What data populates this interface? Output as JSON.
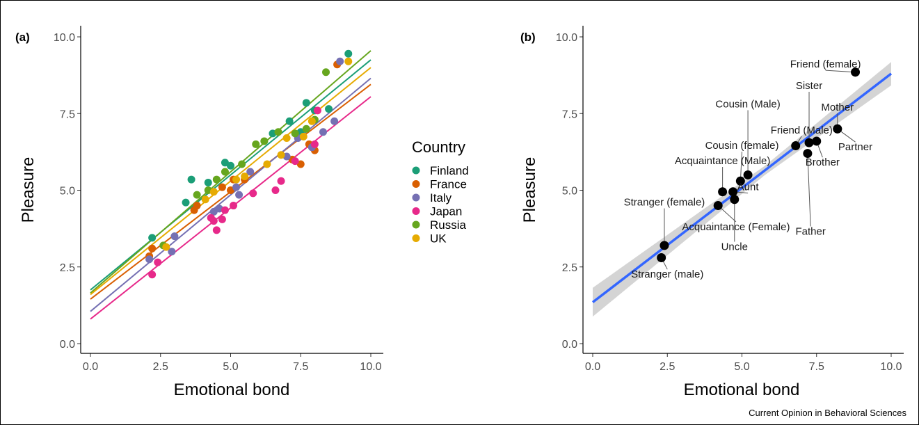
{
  "credit": "Current Opinion in Behavioral Sciences",
  "chart_data": [
    {
      "type": "scatter",
      "panel_tag": "(a)",
      "xlabel": "Emotional bond",
      "ylabel": "Pleasure",
      "xlim": [
        0,
        10
      ],
      "ylim": [
        0,
        10
      ],
      "x_ticks": [
        "0.0",
        "2.5",
        "5.0",
        "7.5",
        "10.0"
      ],
      "y_ticks": [
        "0.0",
        "2.5",
        "5.0",
        "7.5",
        "10.0"
      ],
      "grid": false,
      "legend": {
        "title": "Country",
        "position": "right"
      },
      "series": [
        {
          "name": "Finland",
          "color": "#1b9e77",
          "fit": {
            "intercept": 1.75,
            "slope": 0.75
          },
          "points": [
            [
              2.2,
              3.45
            ],
            [
              3.4,
              4.6
            ],
            [
              3.6,
              5.35
            ],
            [
              4.2,
              5.25
            ],
            [
              4.8,
              5.9
            ],
            [
              5.0,
              5.8
            ],
            [
              6.5,
              6.85
            ],
            [
              7.1,
              7.25
            ],
            [
              7.5,
              6.9
            ],
            [
              7.7,
              7.85
            ],
            [
              8.0,
              7.6
            ],
            [
              8.5,
              7.65
            ],
            [
              9.2,
              9.45
            ]
          ]
        },
        {
          "name": "France",
          "color": "#d95f02",
          "fit": {
            "intercept": 1.45,
            "slope": 0.7
          },
          "points": [
            [
              2.1,
              2.85
            ],
            [
              2.2,
              3.1
            ],
            [
              3.7,
              4.35
            ],
            [
              3.8,
              4.5
            ],
            [
              4.7,
              5.1
            ],
            [
              5.0,
              5.0
            ],
            [
              5.1,
              5.35
            ],
            [
              5.5,
              5.35
            ],
            [
              7.2,
              6.0
            ],
            [
              7.5,
              5.85
            ],
            [
              7.8,
              6.5
            ],
            [
              8.0,
              6.3
            ],
            [
              8.8,
              9.1
            ]
          ]
        },
        {
          "name": "Italy",
          "color": "#7570b3",
          "fit": {
            "intercept": 1.05,
            "slope": 0.76
          },
          "points": [
            [
              2.1,
              2.75
            ],
            [
              2.9,
              3.0
            ],
            [
              3.0,
              3.5
            ],
            [
              4.4,
              4.3
            ],
            [
              4.6,
              4.4
            ],
            [
              5.2,
              5.1
            ],
            [
              5.3,
              4.85
            ],
            [
              5.7,
              5.6
            ],
            [
              7.0,
              6.1
            ],
            [
              7.4,
              6.7
            ],
            [
              7.9,
              6.4
            ],
            [
              8.3,
              6.9
            ],
            [
              8.7,
              7.25
            ],
            [
              8.9,
              9.2
            ]
          ]
        },
        {
          "name": "Japan",
          "color": "#e7298a",
          "fit": {
            "intercept": 0.8,
            "slope": 0.725
          },
          "points": [
            [
              2.2,
              2.25
            ],
            [
              2.4,
              2.65
            ],
            [
              4.3,
              4.1
            ],
            [
              4.4,
              4.0
            ],
            [
              4.5,
              3.7
            ],
            [
              4.7,
              4.05
            ],
            [
              4.8,
              4.35
            ],
            [
              5.1,
              4.5
            ],
            [
              5.8,
              4.9
            ],
            [
              6.6,
              5.0
            ],
            [
              6.8,
              5.3
            ],
            [
              7.3,
              5.95
            ],
            [
              8.0,
              6.5
            ],
            [
              8.1,
              7.6
            ]
          ]
        },
        {
          "name": "Russia",
          "color": "#66a61e",
          "fit": {
            "intercept": 1.65,
            "slope": 0.79
          },
          "points": [
            [
              2.6,
              3.2
            ],
            [
              3.8,
              4.85
            ],
            [
              4.2,
              5.0
            ],
            [
              4.5,
              5.35
            ],
            [
              4.8,
              5.6
            ],
            [
              5.4,
              5.85
            ],
            [
              5.9,
              6.5
            ],
            [
              6.2,
              6.6
            ],
            [
              6.7,
              6.9
            ],
            [
              7.3,
              6.85
            ],
            [
              7.7,
              7.0
            ],
            [
              8.0,
              7.3
            ],
            [
              8.4,
              8.85
            ]
          ]
        },
        {
          "name": "UK",
          "color": "#e6ab02",
          "fit": {
            "intercept": 1.6,
            "slope": 0.74
          },
          "points": [
            [
              2.7,
              3.15
            ],
            [
              4.1,
              4.7
            ],
            [
              4.4,
              4.95
            ],
            [
              5.2,
              5.35
            ],
            [
              5.5,
              5.45
            ],
            [
              6.3,
              5.85
            ],
            [
              6.8,
              6.15
            ],
            [
              7.0,
              6.7
            ],
            [
              7.6,
              6.75
            ],
            [
              7.9,
              7.25
            ],
            [
              9.2,
              9.2
            ]
          ]
        }
      ]
    },
    {
      "type": "scatter",
      "panel_tag": "(b)",
      "xlabel": "Emotional bond",
      "ylabel": "Pleasure",
      "xlim": [
        0,
        10
      ],
      "ylim": [
        0,
        10
      ],
      "x_ticks": [
        "0.0",
        "2.5",
        "5.0",
        "7.5",
        "10.0"
      ],
      "y_ticks": [
        "0.0",
        "2.5",
        "5.0",
        "7.5",
        "10.0"
      ],
      "grid": false,
      "fit": {
        "intercept": 1.35,
        "slope": 0.745,
        "color": "#3366ff",
        "band_color": "#cccccc"
      },
      "points": [
        {
          "label": "Stranger (male)",
          "x": 2.3,
          "y": 2.8,
          "lx": 2.5,
          "ly": 2.15
        },
        {
          "label": "Stranger (female)",
          "x": 2.4,
          "y": 3.2,
          "lx": 2.4,
          "ly": 4.5
        },
        {
          "label": "Acquaintance (Female)",
          "x": 4.2,
          "y": 4.5,
          "lx": 4.8,
          "ly": 3.7
        },
        {
          "label": "Acquaintance (Male)",
          "x": 4.35,
          "y": 4.95,
          "lx": 4.35,
          "ly": 5.85
        },
        {
          "label": "Aunt",
          "x": 4.7,
          "y": 4.95,
          "lx": 5.2,
          "ly": 5.0
        },
        {
          "label": "Uncle",
          "x": 4.75,
          "y": 4.7,
          "lx": 4.75,
          "ly": 3.05
        },
        {
          "label": "Cousin (female)",
          "x": 4.95,
          "y": 5.3,
          "lx": 5.0,
          "ly": 6.35
        },
        {
          "label": "Cousin (Male)",
          "x": 5.2,
          "y": 5.5,
          "lx": 5.2,
          "ly": 7.7
        },
        {
          "label": "Friend (Male)",
          "x": 6.8,
          "y": 6.45,
          "lx": 7.0,
          "ly": 6.85
        },
        {
          "label": "Father",
          "x": 7.2,
          "y": 6.2,
          "lx": 7.3,
          "ly": 3.55
        },
        {
          "label": "Brother",
          "x": 7.5,
          "y": 6.6,
          "lx": 7.7,
          "ly": 5.8
        },
        {
          "label": "Sister",
          "x": 7.25,
          "y": 6.55,
          "lx": 7.25,
          "ly": 8.3
        },
        {
          "label": "Mother",
          "x": 8.2,
          "y": 7.0,
          "lx": 8.2,
          "ly": 7.6
        },
        {
          "label": "Partner",
          "x": 8.2,
          "y": 7.0,
          "lx": 8.8,
          "ly": 6.3
        },
        {
          "label": "Friend (female)",
          "x": 8.8,
          "y": 8.85,
          "lx": 7.8,
          "ly": 9.0
        }
      ]
    }
  ]
}
